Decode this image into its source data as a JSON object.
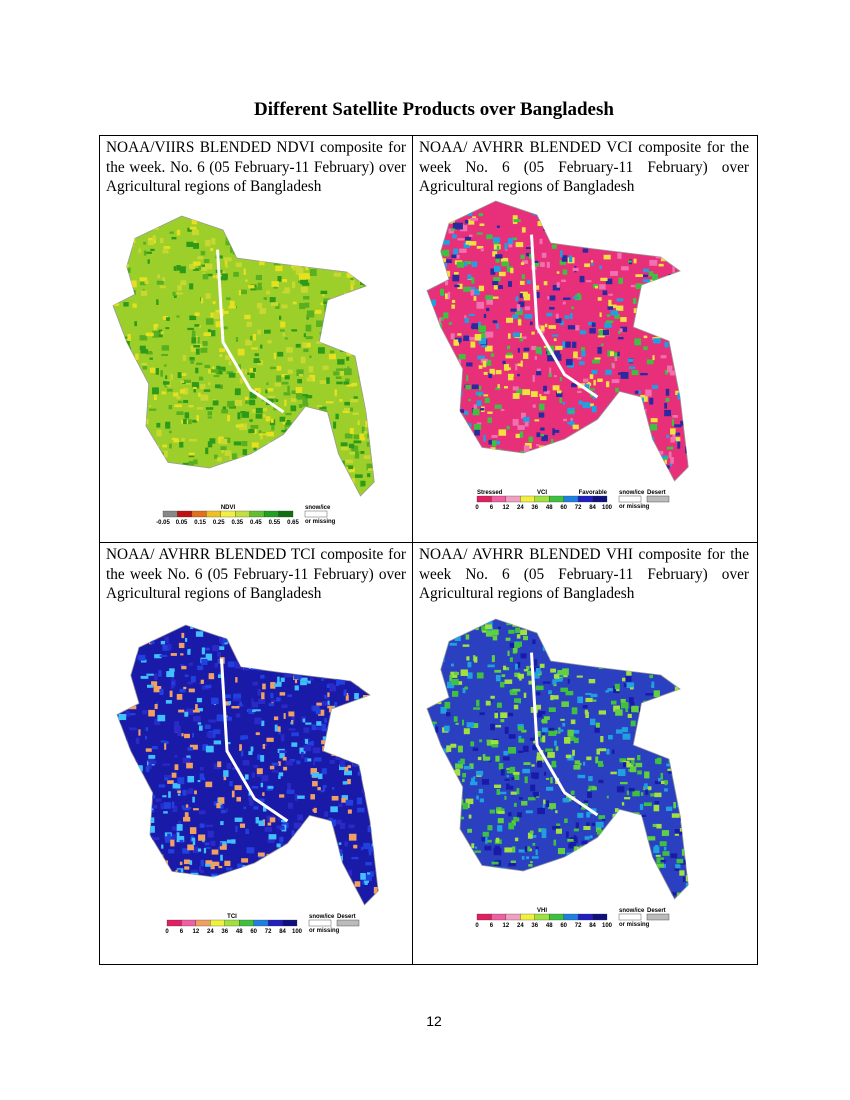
{
  "header": {
    "title": "Different Satellite Products over Bangladesh"
  },
  "panels": [
    {
      "caption": "NOAA/VIIRS BLENDED NDVI composite for the week. No. 6 (05 February-11 February) over Agricultural regions of Bangladesh",
      "legend": {
        "above": [
          "NDVI"
        ],
        "ticks": [
          "-0.05",
          "0.05",
          "0.15",
          "0.25",
          "0.35",
          "0.45",
          "0.55",
          "0.65"
        ],
        "side": [
          "snow/ice"
        ],
        "side_below": "or missing"
      }
    },
    {
      "caption": "NOAA/ AVHRR BLENDED VCI composite for the week No. 6 (05 February-11 February) over Agricultural regions of Bangladesh",
      "legend": {
        "above": [
          "Stressed",
          "VCI",
          "Favorable"
        ],
        "ticks": [
          "0",
          "6",
          "12",
          "24",
          "36",
          "48",
          "60",
          "72",
          "84",
          "100"
        ],
        "side": [
          "snow/ice",
          "Desert"
        ],
        "side_below": "or missing"
      }
    },
    {
      "caption": "NOAA/ AVHRR BLENDED TCI composite for the week No. 6 (05 February-11 February) over Agricultural regions of Bangladesh",
      "legend": {
        "above": [
          "TCI"
        ],
        "ticks": [
          "0",
          "6",
          "12",
          "24",
          "36",
          "48",
          "60",
          "72",
          "84",
          "100"
        ],
        "side": [
          "snow/ice",
          "Desert"
        ],
        "side_below": "or missing"
      }
    },
    {
      "caption": "NOAA/ AVHRR BLENDED VHI composite for the week No. 6 (05 February-11 February) over Agricultural regions of Bangladesh",
      "legend": {
        "above": [
          "VHI"
        ],
        "ticks": [
          "0",
          "6",
          "12",
          "24",
          "36",
          "48",
          "60",
          "72",
          "84",
          "100"
        ],
        "side": [
          "snow/ice",
          "Desert"
        ],
        "side_below": "or missing"
      }
    }
  ],
  "footer": {
    "page_number": "12"
  }
}
